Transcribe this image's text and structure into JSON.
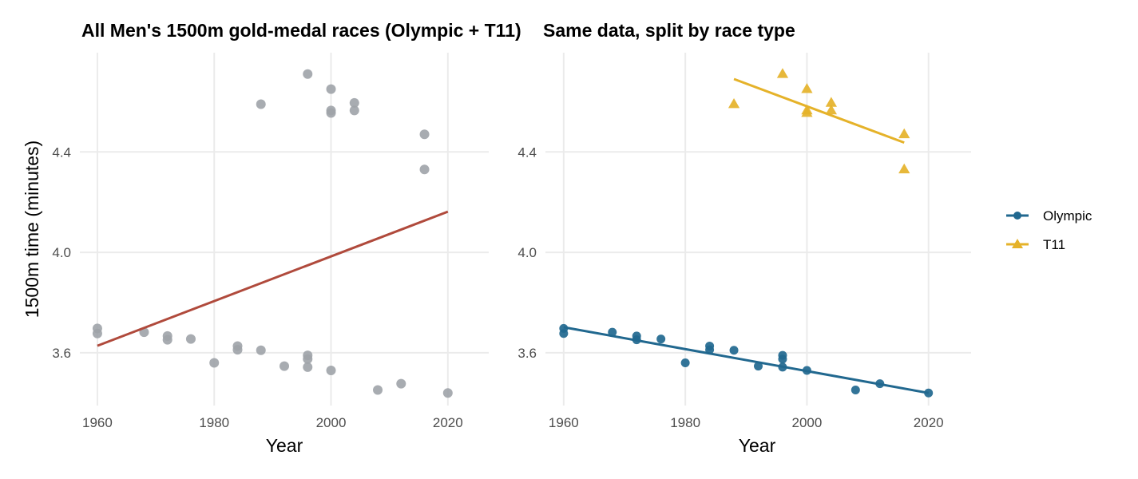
{
  "colors": {
    "all_points": "#9ea3a8",
    "all_fit": "#b04a3c",
    "olympic": "#21688f",
    "t11": "#e5b229",
    "grid": "#ebebeb"
  },
  "chart_data": [
    {
      "type": "scatter",
      "title": "All Men's 1500m gold-medal races (Olympic + T11)",
      "xlabel": "Year",
      "ylabel": "1500m time (minutes)",
      "xlim": [
        1957,
        2027
      ],
      "ylim": [
        3.39,
        4.795
      ],
      "xticks": [
        1960,
        1980,
        2000,
        2020
      ],
      "yticks": [
        3.6,
        4.0,
        4.4
      ],
      "ytick_labels": [
        "3.6",
        "4.0",
        "4.4"
      ],
      "grid": true,
      "points": [
        {
          "x": 1960,
          "y": 3.697
        },
        {
          "x": 1960,
          "y": 3.677
        },
        {
          "x": 1968,
          "y": 3.682
        },
        {
          "x": 1972,
          "y": 3.667
        },
        {
          "x": 1972,
          "y": 3.652
        },
        {
          "x": 1976,
          "y": 3.655
        },
        {
          "x": 1980,
          "y": 3.56
        },
        {
          "x": 1984,
          "y": 3.627
        },
        {
          "x": 1984,
          "y": 3.612
        },
        {
          "x": 1988,
          "y": 3.61
        },
        {
          "x": 1992,
          "y": 3.547
        },
        {
          "x": 1996,
          "y": 3.59
        },
        {
          "x": 1996,
          "y": 3.575
        },
        {
          "x": 1996,
          "y": 3.543
        },
        {
          "x": 2000,
          "y": 3.53
        },
        {
          "x": 2008,
          "y": 3.452
        },
        {
          "x": 2012,
          "y": 3.477
        },
        {
          "x": 2020,
          "y": 3.44
        },
        {
          "x": 1988,
          "y": 4.59
        },
        {
          "x": 1996,
          "y": 4.71
        },
        {
          "x": 2000,
          "y": 4.65
        },
        {
          "x": 2000,
          "y": 4.565
        },
        {
          "x": 2000,
          "y": 4.555
        },
        {
          "x": 2004,
          "y": 4.595
        },
        {
          "x": 2004,
          "y": 4.565
        },
        {
          "x": 2016,
          "y": 4.47
        },
        {
          "x": 2016,
          "y": 4.33
        }
      ],
      "fit": {
        "x": [
          1960,
          2020
        ],
        "y": [
          3.628,
          4.162
        ]
      }
    },
    {
      "type": "scatter",
      "title": "Same data, split by race type",
      "xlabel": "Year",
      "xlim": [
        1957,
        2027
      ],
      "ylim": [
        3.39,
        4.795
      ],
      "xticks": [
        1960,
        1980,
        2000,
        2020
      ],
      "yticks": [
        3.6,
        4.0,
        4.4
      ],
      "ytick_labels": [
        "3.6",
        "4.0",
        "4.4"
      ],
      "grid": true,
      "legend_position": "right",
      "series": [
        {
          "name": "Olympic",
          "marker": "circle",
          "points": [
            {
              "x": 1960,
              "y": 3.697
            },
            {
              "x": 1960,
              "y": 3.677
            },
            {
              "x": 1968,
              "y": 3.682
            },
            {
              "x": 1972,
              "y": 3.667
            },
            {
              "x": 1972,
              "y": 3.652
            },
            {
              "x": 1976,
              "y": 3.655
            },
            {
              "x": 1980,
              "y": 3.56
            },
            {
              "x": 1984,
              "y": 3.627
            },
            {
              "x": 1984,
              "y": 3.612
            },
            {
              "x": 1988,
              "y": 3.61
            },
            {
              "x": 1992,
              "y": 3.547
            },
            {
              "x": 1996,
              "y": 3.59
            },
            {
              "x": 1996,
              "y": 3.575
            },
            {
              "x": 1996,
              "y": 3.543
            },
            {
              "x": 2000,
              "y": 3.53
            },
            {
              "x": 2008,
              "y": 3.452
            },
            {
              "x": 2012,
              "y": 3.477
            },
            {
              "x": 2020,
              "y": 3.44
            }
          ],
          "fit": {
            "x": [
              1960,
              2020
            ],
            "y": [
              3.702,
              3.44
            ]
          }
        },
        {
          "name": "T11",
          "marker": "triangle",
          "points": [
            {
              "x": 1988,
              "y": 4.59
            },
            {
              "x": 1996,
              "y": 4.71
            },
            {
              "x": 2000,
              "y": 4.65
            },
            {
              "x": 2000,
              "y": 4.565
            },
            {
              "x": 2000,
              "y": 4.555
            },
            {
              "x": 2004,
              "y": 4.595
            },
            {
              "x": 2004,
              "y": 4.565
            },
            {
              "x": 2016,
              "y": 4.47
            },
            {
              "x": 2016,
              "y": 4.33
            }
          ],
          "fit": {
            "x": [
              1988,
              2016
            ],
            "y": [
              4.69,
              4.437
            ]
          }
        }
      ]
    }
  ]
}
